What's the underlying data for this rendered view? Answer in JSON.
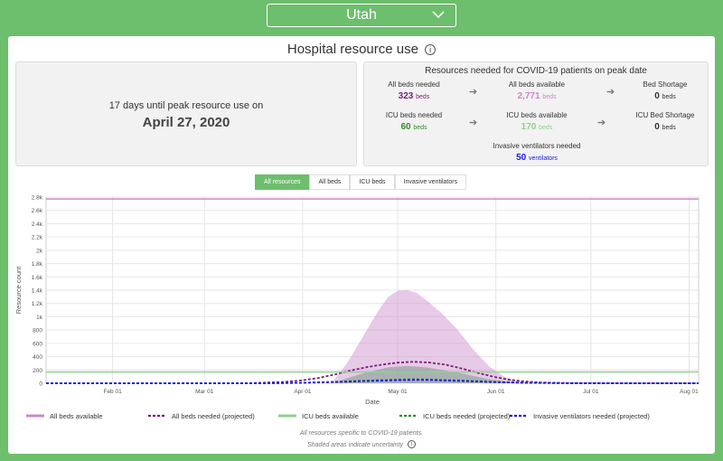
{
  "state_select": {
    "value": "Utah"
  },
  "card": {
    "title": "Hospital resource use"
  },
  "peak": {
    "days_line": "17 days until peak resource use on",
    "date": "April 27, 2020"
  },
  "resources": {
    "title": "Resources needed for COVID-19 patients on peak date",
    "all_beds_needed": {
      "label": "All beds needed",
      "value": "323",
      "unit": "beds"
    },
    "all_beds_available": {
      "label": "All beds available",
      "value": "2,771",
      "unit": "beds"
    },
    "bed_shortage": {
      "label": "Bed Shortage",
      "value": "0",
      "unit": "beds"
    },
    "icu_beds_needed": {
      "label": "ICU beds needed",
      "value": "60",
      "unit": "beds"
    },
    "icu_beds_available": {
      "label": "ICU beds available",
      "value": "170",
      "unit": "beds"
    },
    "icu_bed_shortage": {
      "label": "ICU Bed Shortage",
      "value": "0",
      "unit": "beds"
    },
    "ventilators": {
      "label": "Invasive ventilators needed",
      "value": "50",
      "unit": "ventilators"
    }
  },
  "tabs": [
    "All resources",
    "All beds",
    "ICU beds",
    "Invasive ventilators"
  ],
  "colors": {
    "accent": "#6dbe6d",
    "all_beds": "#c989c9",
    "all_beds_needed": "#7a1f7a",
    "icu_available": "#8fd08f",
    "icu_needed": "#2e8b2e",
    "ventilators": "#1a1ae6"
  },
  "footnotes": [
    "All resources specific to COVID-19 patients.",
    "Shaded areas indicate uncertainty"
  ],
  "chart_data": {
    "type": "line",
    "xlabel": "Date",
    "ylabel": "Resource count",
    "x_ticks": [
      "Feb 01",
      "Mar 01",
      "Apr 01",
      "May 01",
      "Jun 01",
      "Jul 01",
      "Aug 01"
    ],
    "x_tick_days": [
      31,
      60,
      91,
      121,
      152,
      182,
      213
    ],
    "x_range_days": [
      10,
      216
    ],
    "y_ticks": [
      "0",
      "200",
      "400",
      "600",
      "800",
      "1k",
      "1.2k",
      "1.4k",
      "1.6k",
      "1.8k",
      "2k",
      "2.2k",
      "2.4k",
      "2.6k",
      "2.8k"
    ],
    "ylim": [
      0,
      2800
    ],
    "grid": true,
    "legend_position": "bottom",
    "series": [
      {
        "name": "All beds available",
        "style": "solid",
        "x": [
          10,
          216
        ],
        "y": [
          2771,
          2771
        ]
      },
      {
        "name": "All beds needed (projected)",
        "style": "dashed",
        "x": [
          10,
          60,
          75,
          85,
          91,
          96,
          101,
          106,
          111,
          116,
          121,
          126,
          131,
          136,
          141,
          146,
          151,
          156,
          161,
          166,
          175,
          216
        ],
        "y": [
          0,
          0,
          3,
          20,
          45,
          80,
          130,
          190,
          240,
          280,
          310,
          323,
          312,
          280,
          225,
          160,
          100,
          55,
          28,
          12,
          3,
          0
        ]
      },
      {
        "name": "ICU beds available",
        "style": "solid",
        "x": [
          10,
          216
        ],
        "y": [
          170,
          170
        ]
      },
      {
        "name": "ICU beds needed (projected)",
        "style": "dashed",
        "x": [
          10,
          80,
          91,
          101,
          111,
          121,
          126,
          131,
          141,
          151,
          161,
          175,
          216
        ],
        "y": [
          0,
          0,
          8,
          22,
          40,
          56,
          60,
          57,
          42,
          22,
          8,
          1,
          0
        ]
      },
      {
        "name": "Invasive ventilators needed (projected)",
        "style": "dashed",
        "x": [
          10,
          80,
          91,
          101,
          111,
          121,
          126,
          131,
          141,
          151,
          161,
          175,
          216
        ],
        "y": [
          0,
          0,
          6,
          18,
          33,
          46,
          50,
          48,
          35,
          18,
          6,
          1,
          0
        ]
      }
    ],
    "uncertainty": [
      {
        "series": "All beds needed (projected)",
        "x": [
          100,
          105,
          110,
          115,
          118,
          121,
          124,
          127,
          130,
          135,
          140,
          145,
          150,
          155,
          160,
          165
        ],
        "upper": [
          0,
          300,
          700,
          1100,
          1300,
          1390,
          1400,
          1360,
          1250,
          1050,
          800,
          500,
          250,
          90,
          20,
          0
        ]
      },
      {
        "series": "ICU beds needed (projected)",
        "x": [
          100,
          110,
          118,
          124,
          130,
          140,
          150,
          160
        ],
        "upper": [
          0,
          150,
          240,
          260,
          240,
          160,
          60,
          0
        ]
      }
    ]
  }
}
